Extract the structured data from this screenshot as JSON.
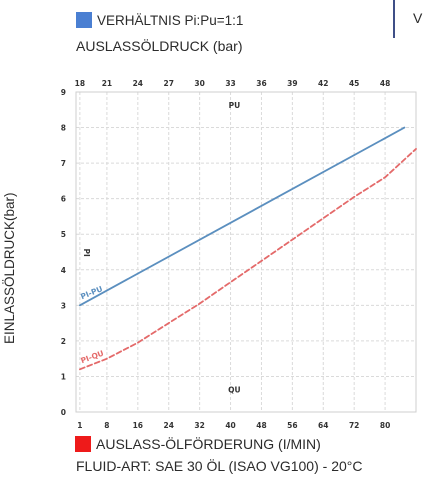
{
  "chart_data": {
    "type": "line",
    "legend": [
      {
        "label": "VERHÄLTNIS Pi:Pu=1:1",
        "color": "#4a7fd2"
      },
      {
        "label": "AUSLASS-ÖLFÖRDERUNG (I/MIN)",
        "color": "#ee1a1a"
      }
    ],
    "top_axis_label": "AUSLASSÖLDRUCK (bar)",
    "left_axis_label": "EINLASSÖLDRUCK(bar)",
    "clipped_text": "V",
    "footer": "FLUID-ART: SAE 30 ÖL (ISAO VG100) - 20°C",
    "ylim": [
      0,
      9
    ],
    "yticks": [
      "0",
      "1",
      "2",
      "3",
      "4",
      "5",
      "6",
      "7",
      "8",
      "9"
    ],
    "xlim_bottom": [
      0,
      88
    ],
    "xticks_bottom": [
      "1",
      "8",
      "16",
      "24",
      "32",
      "40",
      "48",
      "56",
      "64",
      "72",
      "80"
    ],
    "xticks_top": [
      "18",
      "21",
      "24",
      "27",
      "30",
      "33",
      "36",
      "39",
      "42",
      "45",
      "48"
    ],
    "annotations": {
      "pu": "PU",
      "pi": "PI",
      "qu": "QU"
    },
    "series": [
      {
        "name": "PI-PU",
        "color": "#5b8fbf",
        "style": "solid",
        "x": [
          1,
          85
        ],
        "y": [
          3.0,
          8.0
        ]
      },
      {
        "name": "PI-QU",
        "color": "#e46a6a",
        "style": "dashed",
        "x": [
          1,
          8,
          16,
          24,
          32,
          40,
          48,
          56,
          64,
          72,
          80,
          88
        ],
        "y": [
          1.2,
          1.5,
          1.95,
          2.5,
          3.05,
          3.65,
          4.25,
          4.85,
          5.45,
          6.05,
          6.6,
          7.4
        ]
      }
    ]
  }
}
